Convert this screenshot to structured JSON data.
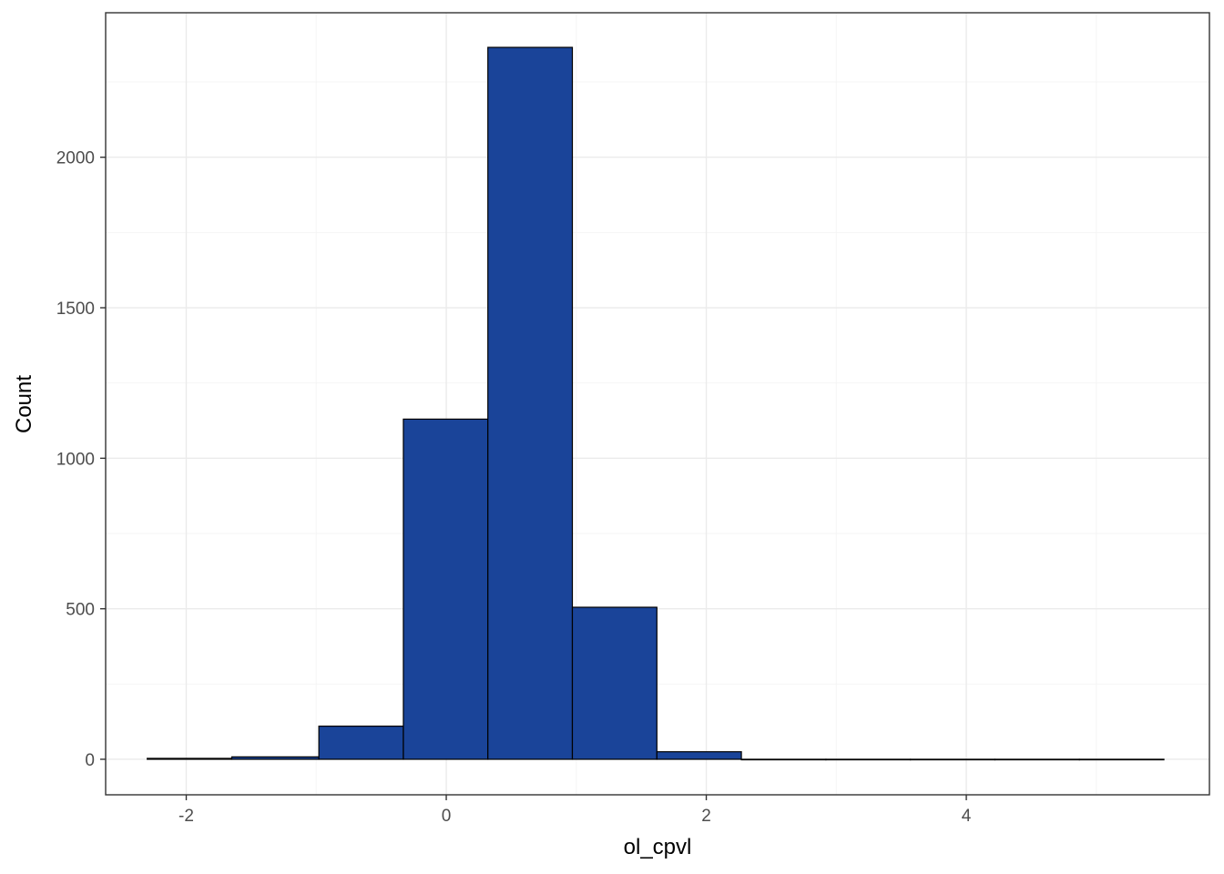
{
  "chart_data": {
    "type": "bar",
    "histogram": true,
    "title": "",
    "xlabel": "ol_cpvl",
    "ylabel": "Count",
    "bins": [
      {
        "x0": -2.3,
        "x1": -1.65,
        "count": 3
      },
      {
        "x0": -1.65,
        "x1": -0.98,
        "count": 8
      },
      {
        "x0": -0.98,
        "x1": -0.33,
        "count": 110
      },
      {
        "x0": -0.33,
        "x1": 0.32,
        "count": 1130
      },
      {
        "x0": 0.32,
        "x1": 0.97,
        "count": 2365
      },
      {
        "x0": 0.97,
        "x1": 1.62,
        "count": 505
      },
      {
        "x0": 1.62,
        "x1": 2.27,
        "count": 25
      },
      {
        "x0": 2.27,
        "x1": 2.92,
        "count": 0
      },
      {
        "x0": 2.92,
        "x1": 3.57,
        "count": 0
      },
      {
        "x0": 3.57,
        "x1": 4.22,
        "count": 0
      },
      {
        "x0": 4.22,
        "x1": 4.87,
        "count": 0
      },
      {
        "x0": 4.87,
        "x1": 5.52,
        "count": 0
      }
    ],
    "xlim": [
      -2.62,
      5.87
    ],
    "ylim": [
      -118,
      2480
    ],
    "xticks": [
      -2,
      0,
      2,
      4
    ],
    "yticks": [
      0,
      500,
      1000,
      1500,
      2000
    ],
    "grid": true,
    "legend": "none",
    "colors": {
      "bar_fill": "#1a4499",
      "bar_stroke": "#000000",
      "grid_major": "#ebebeb",
      "grid_minor": "#f5f5f5",
      "panel_border": "#333333"
    }
  }
}
